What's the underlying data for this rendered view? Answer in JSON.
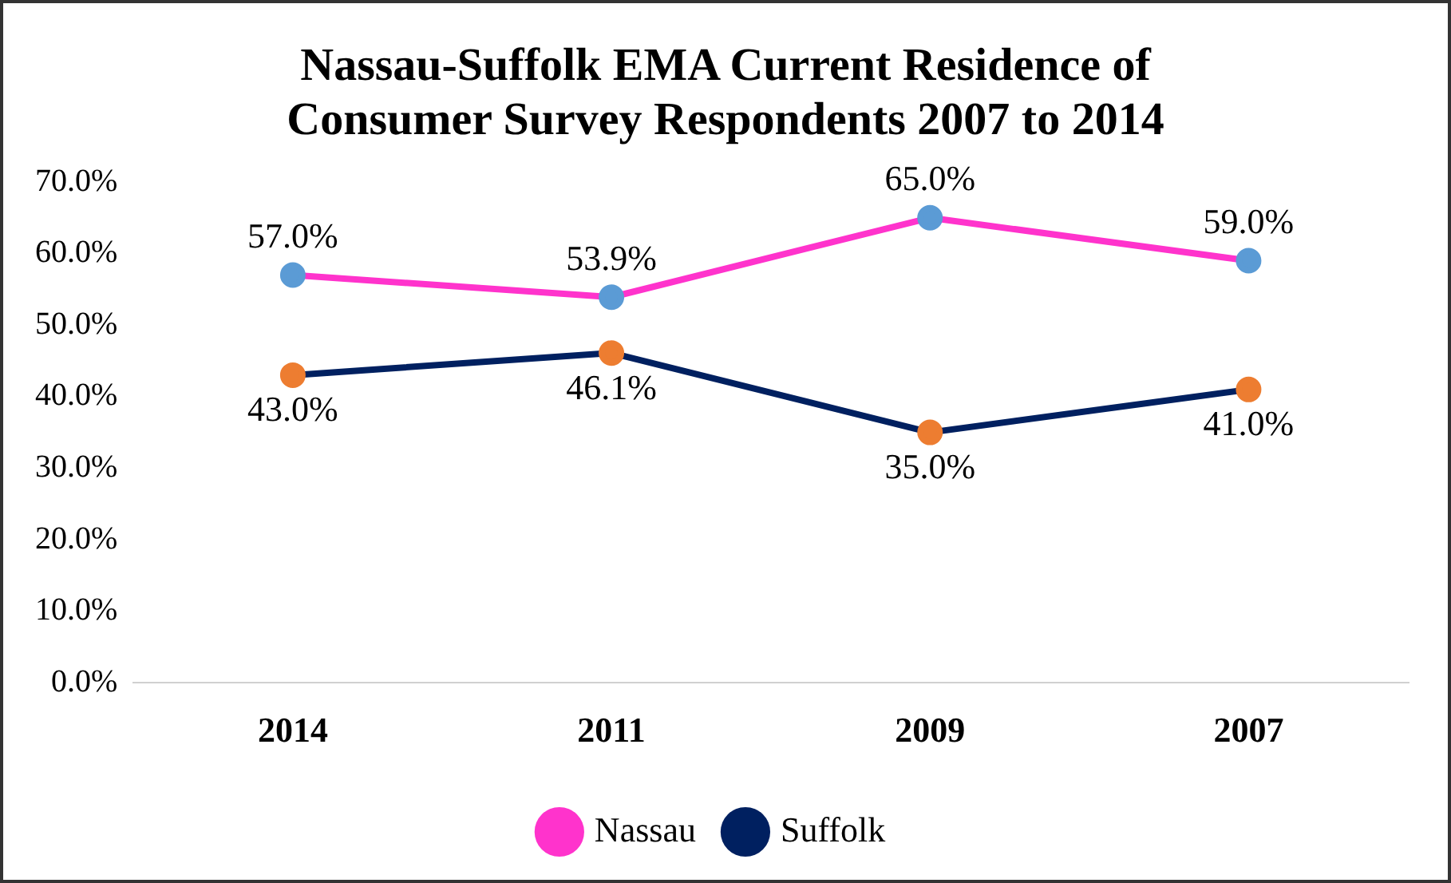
{
  "chart_data": {
    "type": "line",
    "title": "Nassau-Suffolk EMA Current Residence of Consumer Survey Respondents 2007 to 2014",
    "categories": [
      "2014",
      "2011",
      "2009",
      "2007"
    ],
    "series": [
      {
        "name": "Nassau",
        "color": "#ff33cc",
        "colors": [
          "#5b9bd5",
          "#5b9bd5",
          "#5b9bd5",
          "#5b9bd5"
        ],
        "values": [
          57.0,
          53.9,
          65.0,
          59.0
        ],
        "value_labels": [
          "57.0%",
          "53.9%",
          "65.0%",
          "59.0%"
        ]
      },
      {
        "name": "Suffolk",
        "color": "#002060",
        "colors": [
          "#ed7d31",
          "#ed7d31",
          "#ed7d31",
          "#ed7d31"
        ],
        "values": [
          43.0,
          46.1,
          35.0,
          41.0
        ],
        "value_labels": [
          "43.0%",
          "46.1%",
          "35.0%",
          "41.0%"
        ]
      }
    ],
    "ylim": [
      0,
      70
    ],
    "yticks": [
      {
        "value": 0,
        "label": "0.0%"
      },
      {
        "value": 10,
        "label": "10.0%"
      },
      {
        "value": 20,
        "label": "20.0%"
      },
      {
        "value": 30,
        "label": "30.0%"
      },
      {
        "value": 40,
        "label": "40.0%"
      },
      {
        "value": 50,
        "label": "50.0%"
      },
      {
        "value": 60,
        "label": "60.0%"
      },
      {
        "value": 70,
        "label": "70.0%"
      }
    ],
    "grid": false,
    "legend": "bottom",
    "marker": "circle",
    "line_style": "solid"
  }
}
